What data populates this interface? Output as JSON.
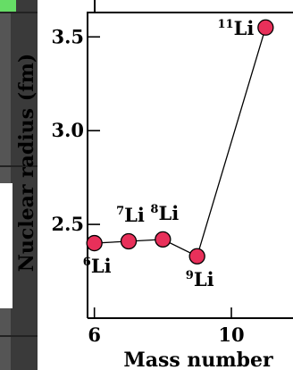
{
  "chart_data": {
    "type": "scatter",
    "xlabel": "Mass number",
    "ylabel": "Nuclear radius (fm)",
    "xlim": [
      5.8,
      11.8
    ],
    "ylim": [
      2.0,
      3.63
    ],
    "xticks": [
      6,
      10
    ],
    "yticks": [
      2.5,
      3.0,
      3.5
    ],
    "xtick_labels": [
      "6",
      "10"
    ],
    "ytick_labels": [
      "2.5",
      "3.0",
      "3.5"
    ],
    "series": [
      {
        "x": [
          6,
          7,
          8,
          9,
          11
        ],
        "y": [
          2.4,
          2.41,
          2.42,
          2.33,
          3.55
        ],
        "marker_color": "#e8305a",
        "line_color": "#000000"
      }
    ],
    "point_labels": [
      {
        "mass": "6",
        "element": "Li",
        "x": 6,
        "y": 2.4,
        "placement": "below"
      },
      {
        "mass": "7",
        "element": "Li",
        "x": 7,
        "y": 2.41,
        "placement": "above"
      },
      {
        "mass": "8",
        "element": "Li",
        "x": 8,
        "y": 2.42,
        "placement": "above"
      },
      {
        "mass": "9",
        "element": "Li",
        "x": 9,
        "y": 2.33,
        "placement": "below"
      },
      {
        "mass": "11",
        "element": "Li",
        "x": 11,
        "y": 3.55,
        "placement": "left"
      }
    ],
    "grid": false
  }
}
